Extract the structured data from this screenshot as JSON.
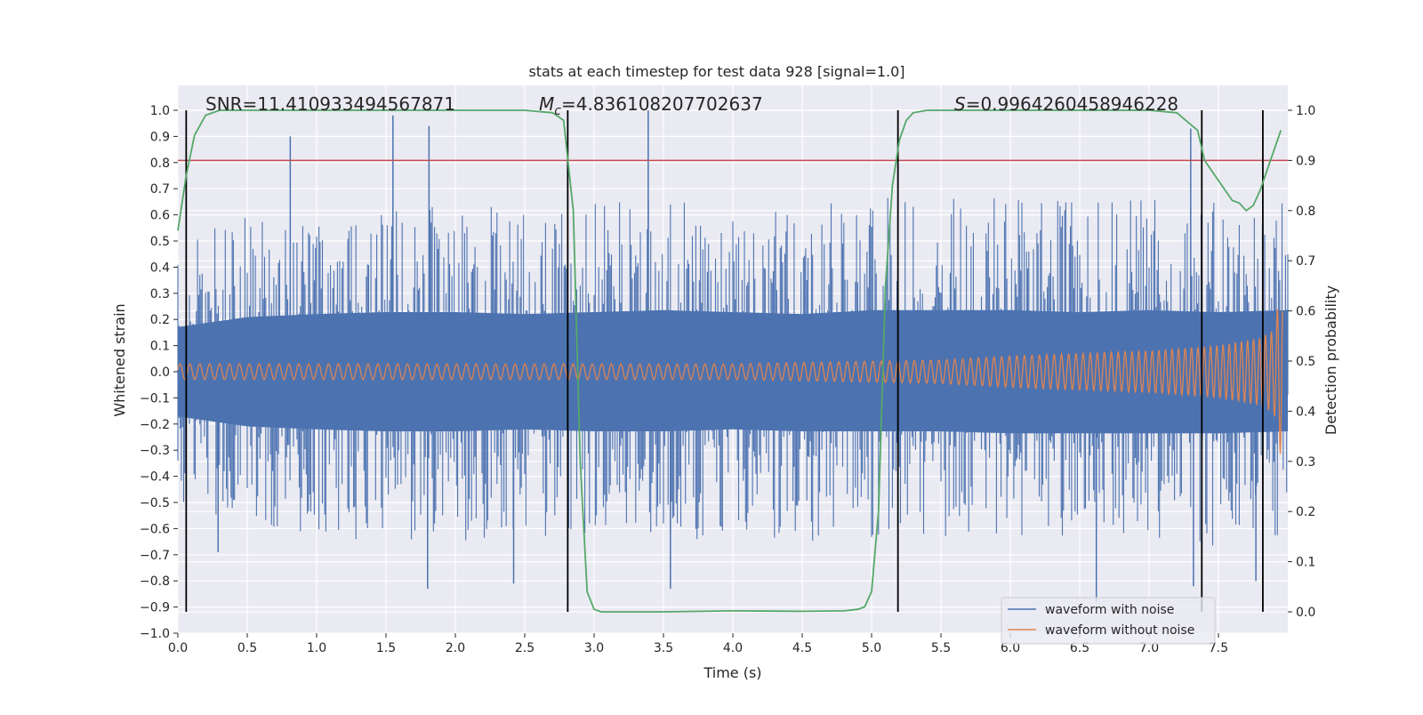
{
  "chart_data": {
    "type": "line",
    "title": "stats at each timestep for test data 928 [signal=1.0]",
    "xlabel": "Time (s)",
    "ylabel": "Whitened strain",
    "ylabel_right": "Detection probability",
    "xlim": [
      0.0,
      8.0
    ],
    "ylim": [
      -1.0,
      1.0
    ],
    "ylim_right": [
      -0.0467,
      1.0
    ],
    "x_ticks": [
      "0.0",
      "0.5",
      "1.0",
      "1.5",
      "2.0",
      "2.5",
      "3.0",
      "3.5",
      "4.0",
      "4.5",
      "5.0",
      "5.5",
      "6.0",
      "6.5",
      "7.0",
      "7.5"
    ],
    "y_ticks": [
      "1.0",
      "0.9",
      "0.8",
      "0.7",
      "0.6",
      "0.5",
      "0.4",
      "0.3",
      "0.2",
      "0.1",
      "0.0",
      "−0.1",
      "−0.2",
      "−0.3",
      "−0.4",
      "−0.5",
      "−0.6",
      "−0.7",
      "−0.8",
      "−0.9",
      "−1.0"
    ],
    "y_ticks_right": [
      "1.0",
      "0.9",
      "0.8",
      "0.7",
      "0.6",
      "0.5",
      "0.4",
      "0.3",
      "0.2",
      "0.1",
      "0.0"
    ],
    "grid": true,
    "legend_position": "lower-right",
    "annotations": {
      "snr": "SNR=11.410933494567871",
      "mc_symbol": "M",
      "mc_sub": "c",
      "mc_value": "=4.836108207702637",
      "s_symbol": "S",
      "s_value": "=0.9964260458946228"
    },
    "threshold_right": 0.9,
    "vertical_markers_x": [
      0.06,
      2.81,
      5.19,
      7.38,
      7.82
    ],
    "series": [
      {
        "name": "waveform with noise",
        "color": "#4c72b0",
        "envelope_x": [
          0.0,
          0.5,
          1.0,
          1.5,
          2.0,
          2.5,
          3.0,
          3.5,
          4.0,
          4.5,
          5.0,
          5.5,
          6.0,
          6.5,
          7.0,
          7.5,
          8.0
        ],
        "envelope_upper": [
          0.45,
          0.55,
          0.58,
          0.6,
          0.6,
          0.58,
          0.6,
          0.62,
          0.6,
          0.58,
          0.62,
          0.62,
          0.62,
          0.6,
          0.62,
          0.6,
          0.62
        ],
        "envelope_lower": [
          -0.45,
          -0.55,
          -0.58,
          -0.6,
          -0.6,
          -0.58,
          -0.6,
          -0.6,
          -0.58,
          -0.6,
          -0.6,
          -0.6,
          -0.62,
          -0.62,
          -0.62,
          -0.62,
          -0.6
        ],
        "spikes": [
          [
            0.81,
            0.9
          ],
          [
            1.55,
            0.98
          ],
          [
            1.81,
            0.94
          ],
          [
            3.39,
            1.0
          ],
          [
            7.3,
            0.93
          ],
          [
            2.42,
            -0.81
          ],
          [
            3.55,
            -0.83
          ],
          [
            6.62,
            -0.88
          ],
          [
            7.77,
            -0.8
          ],
          [
            1.8,
            -0.83
          ],
          [
            0.29,
            -0.69
          ],
          [
            7.32,
            -0.82
          ]
        ]
      },
      {
        "name": "waveform without noise",
        "color": "#dd8452",
        "envelope_x": [
          0.0,
          1.0,
          2.0,
          3.0,
          4.0,
          5.0,
          5.5,
          6.0,
          6.5,
          7.0,
          7.5,
          7.8,
          7.9,
          7.95,
          8.0
        ],
        "envelope_amp": [
          0.03,
          0.03,
          0.03,
          0.03,
          0.03,
          0.04,
          0.045,
          0.06,
          0.07,
          0.08,
          0.1,
          0.13,
          0.16,
          0.33,
          0.2
        ]
      },
      {
        "name": "detection probability",
        "color": "#55a868",
        "axis": "right",
        "x": [
          0.0,
          0.06,
          0.12,
          0.2,
          0.3,
          0.5,
          1.0,
          2.0,
          2.5,
          2.7,
          2.78,
          2.85,
          2.9,
          2.95,
          3.0,
          3.05,
          3.2,
          3.5,
          4.0,
          4.5,
          4.8,
          4.9,
          4.95,
          5.0,
          5.05,
          5.1,
          5.15,
          5.2,
          5.25,
          5.3,
          5.4,
          5.6,
          6.0,
          6.5,
          7.0,
          7.2,
          7.35,
          7.4,
          7.5,
          7.6,
          7.65,
          7.7,
          7.75,
          7.8,
          7.85,
          7.9,
          7.95
        ],
        "y": [
          0.76,
          0.87,
          0.95,
          0.99,
          1.0,
          1.0,
          1.0,
          1.0,
          1.0,
          0.995,
          0.98,
          0.8,
          0.3,
          0.04,
          0.005,
          0.0,
          0.0,
          0.0,
          0.002,
          0.001,
          0.002,
          0.005,
          0.01,
          0.04,
          0.2,
          0.65,
          0.85,
          0.94,
          0.98,
          0.995,
          1.0,
          1.0,
          1.0,
          1.0,
          1.0,
          0.995,
          0.96,
          0.9,
          0.86,
          0.82,
          0.815,
          0.8,
          0.81,
          0.84,
          0.88,
          0.92,
          0.96
        ]
      }
    ]
  }
}
